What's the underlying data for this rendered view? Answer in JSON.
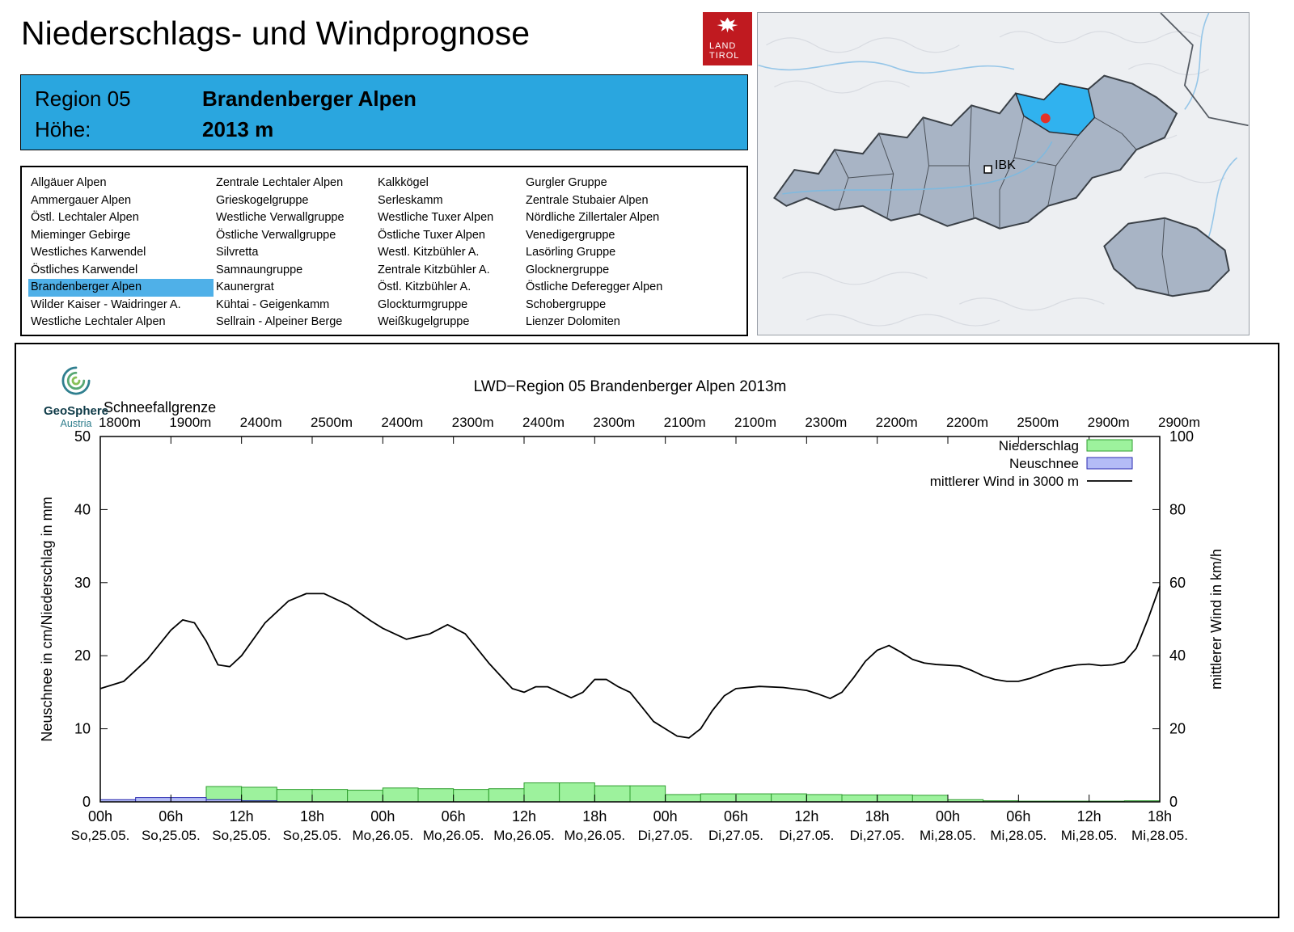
{
  "page": {
    "title": "Niederschlags- und Windprognose"
  },
  "land_tirol_logo": {
    "line1": "LAND",
    "line2": "TIROL"
  },
  "map": {
    "city_label": "IBK"
  },
  "region_header": {
    "region_label": "Region 05",
    "region_name": "Brandenberger Alpen",
    "elevation_label": "Höhe:",
    "elevation_value": "2013 m"
  },
  "region_list": {
    "selected": "Brandenberger Alpen",
    "columns": [
      [
        "Allgäuer Alpen",
        "Ammergauer Alpen",
        "Östl. Lechtaler Alpen",
        "Mieminger Gebirge",
        "Westliches Karwendel",
        "Östliches Karwendel",
        "Brandenberger Alpen",
        "Wilder Kaiser - Waidringer A.",
        "Westliche Lechtaler Alpen"
      ],
      [
        "Zentrale Lechtaler Alpen",
        "Grieskogelgruppe",
        "Westliche Verwallgruppe",
        "Östliche Verwallgruppe",
        "Silvretta",
        "Samnaungruppe",
        "Kaunergrat",
        "Kühtai - Geigenkamm",
        "Sellrain - Alpeiner Berge"
      ],
      [
        "Kalkkögel",
        "Serleskamm",
        "Westliche Tuxer Alpen",
        "Östliche Tuxer Alpen",
        "Westl. Kitzbühler A.",
        "Zentrale Kitzbühler A.",
        "Östl. Kitzbühler A.",
        "Glockturmgruppe",
        "Weißkugelgruppe"
      ],
      [
        "Gurgler Gruppe",
        "Zentrale Stubaier Alpen",
        "Nördliche Zillertaler Alpen",
        "Venedigergruppe",
        "Lasörling Gruppe",
        "Glocknergruppe",
        "Östliche Deferegger Alpen",
        "Schobergruppe",
        "Lienzer Dolomiten"
      ]
    ]
  },
  "geosphere_logo": {
    "line1": "GeoSphere",
    "line2": "Austria"
  },
  "chart_data": {
    "type": "bar+line",
    "title": "LWD−Region 05 Brandenberger Alpen 2013m",
    "snowline": {
      "label": "Schneefallgrenze",
      "values": [
        "1800m",
        "1900m",
        "2400m",
        "2500m",
        "2400m",
        "2300m",
        "2400m",
        "2300m",
        "2100m",
        "2100m",
        "2300m",
        "2200m",
        "2200m",
        "2500m",
        "2900m",
        "2900m"
      ]
    },
    "axes": {
      "ylabel_left": "Neuschnee in cm/Niederschlag in mm",
      "ylabel_right": "mittlerer Wind in km/h",
      "ylim_left": [
        0,
        50
      ],
      "ylim_right": [
        0,
        100
      ],
      "yticks_left": [
        0,
        10,
        20,
        30,
        40,
        50
      ],
      "yticks_right": [
        0,
        20,
        40,
        60,
        80,
        100
      ],
      "x_range_hours": [
        0,
        90
      ],
      "xtick_step_hours": 6
    },
    "xticks": [
      {
        "hour": "00h",
        "date": "So,25.05."
      },
      {
        "hour": "06h",
        "date": "So,25.05."
      },
      {
        "hour": "12h",
        "date": "So,25.05."
      },
      {
        "hour": "18h",
        "date": "So,25.05."
      },
      {
        "hour": "00h",
        "date": "Mo,26.05."
      },
      {
        "hour": "06h",
        "date": "Mo,26.05."
      },
      {
        "hour": "12h",
        "date": "Mo,26.05."
      },
      {
        "hour": "18h",
        "date": "Mo,26.05."
      },
      {
        "hour": "00h",
        "date": "Di,27.05."
      },
      {
        "hour": "06h",
        "date": "Di,27.05."
      },
      {
        "hour": "12h",
        "date": "Di,27.05."
      },
      {
        "hour": "18h",
        "date": "Di,27.05."
      },
      {
        "hour": "00h",
        "date": "Mi,28.05."
      },
      {
        "hour": "06h",
        "date": "Mi,28.05."
      },
      {
        "hour": "12h",
        "date": "Mi,28.05."
      },
      {
        "hour": "18h",
        "date": "Mi,28.05."
      }
    ],
    "legend": [
      {
        "label": "Niederschlag",
        "type": "box",
        "fill": "#9df29d",
        "stroke": "#2f9e2f"
      },
      {
        "label": "Neuschnee",
        "type": "box",
        "fill": "#b4bcf6",
        "stroke": "#2a2ab0"
      },
      {
        "label": "mittlerer Wind in 3000 m",
        "type": "line",
        "stroke": "#000000"
      }
    ],
    "series": {
      "niederschlag_mm": {
        "axis": "left",
        "interval_hours": 3,
        "values": [
          0.05,
          0.1,
          0.2,
          2.1,
          2.0,
          1.7,
          1.7,
          1.6,
          1.9,
          1.8,
          1.7,
          1.8,
          2.6,
          2.6,
          2.2,
          2.2,
          1.0,
          1.1,
          1.1,
          1.1,
          1.0,
          0.95,
          0.95,
          0.9,
          0.3,
          0.15,
          0.1,
          0.1,
          0.1,
          0.15
        ]
      },
      "neuschnee_cm": {
        "axis": "left",
        "interval_hours": 3,
        "values": [
          0.3,
          0.6,
          0.6,
          0.3,
          0.15,
          0,
          0,
          0,
          0,
          0,
          0,
          0,
          0,
          0,
          0,
          0,
          0,
          0,
          0,
          0,
          0,
          0,
          0,
          0,
          0,
          0,
          0,
          0,
          0,
          0
        ]
      },
      "wind_kmh": {
        "axis": "right",
        "x_hours": [
          0,
          2,
          4,
          6,
          7,
          8,
          9,
          10,
          11,
          12,
          14,
          16,
          17.5,
          19,
          21,
          23,
          24,
          26,
          28,
          29.5,
          31,
          33,
          35,
          36,
          37,
          38,
          39,
          40,
          41,
          42,
          43,
          44,
          45,
          46,
          47,
          48,
          49,
          50,
          51,
          52,
          53,
          54,
          56,
          58,
          60,
          61,
          62,
          63,
          64,
          65,
          66,
          67,
          68,
          69,
          70,
          71,
          72,
          73,
          74,
          75,
          76,
          77,
          78,
          79,
          80,
          81,
          82,
          83,
          84,
          85,
          86,
          87,
          88,
          89,
          90
        ],
        "y": [
          31,
          33,
          39,
          47,
          49.8,
          49,
          44,
          37.5,
          37,
          40,
          49,
          55,
          57,
          57,
          54,
          49.5,
          47.5,
          44.5,
          46,
          48.5,
          46,
          38,
          31,
          30,
          31.5,
          31.5,
          30,
          28.5,
          30,
          33.5,
          33.5,
          31.5,
          30,
          26,
          22,
          20,
          18,
          17.5,
          20,
          25,
          29,
          31,
          31.6,
          31.3,
          30.5,
          29.5,
          28.3,
          30,
          34,
          38.5,
          41.5,
          42.8,
          41,
          39,
          38,
          37.6,
          37.4,
          37.2,
          36,
          34.5,
          33.5,
          33,
          33,
          33.8,
          35,
          36.2,
          37,
          37.5,
          37.7,
          37.3,
          37.5,
          38.3,
          42,
          50,
          59
        ]
      }
    }
  }
}
